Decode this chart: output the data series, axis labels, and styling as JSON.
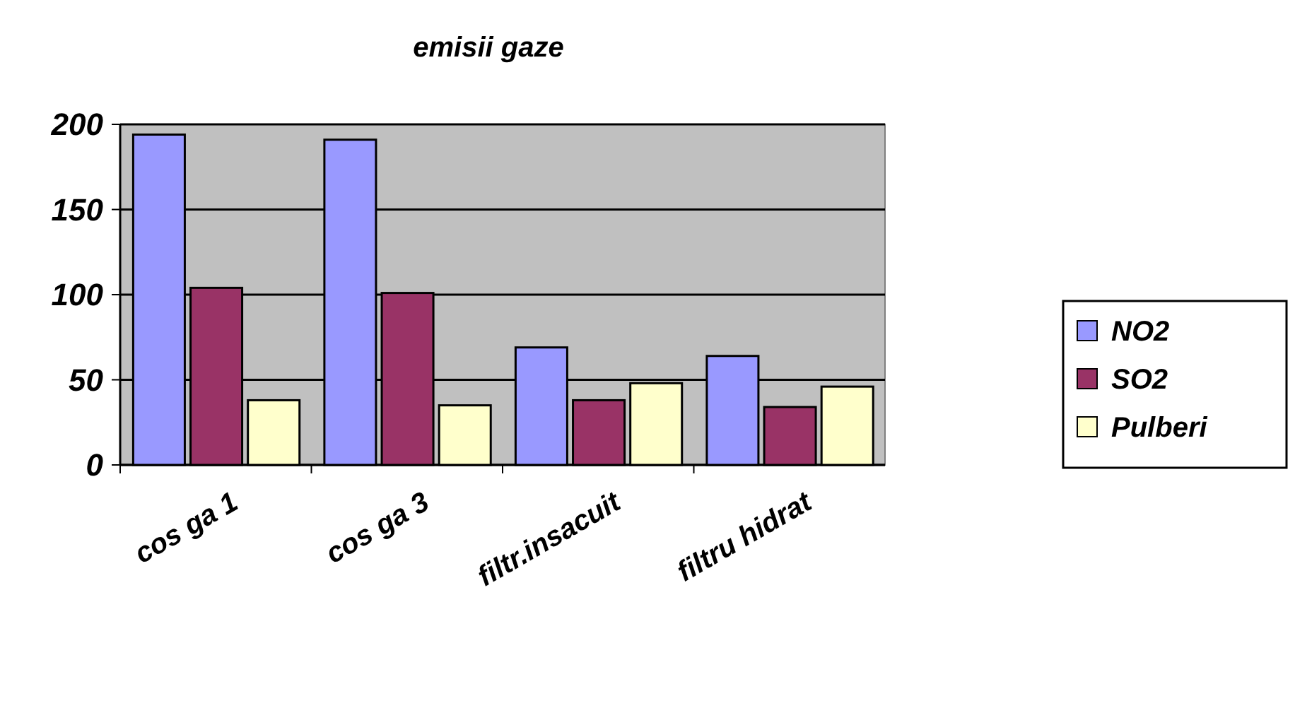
{
  "chart_data": {
    "type": "bar",
    "title": "emisii gaze",
    "categories": [
      "cos ga 1",
      "cos ga 3",
      "filtr.insacuit",
      "filtru hidrat"
    ],
    "series": [
      {
        "name": "NO2",
        "color": "#9999ff",
        "values": [
          194,
          191,
          69,
          64
        ]
      },
      {
        "name": "SO2",
        "color": "#993366",
        "values": [
          104,
          101,
          38,
          34
        ]
      },
      {
        "name": "Pulberi",
        "color": "#ffffcc",
        "values": [
          38,
          35,
          48,
          46
        ]
      }
    ],
    "ylim": [
      0,
      200
    ],
    "yticks": [
      0,
      50,
      100,
      150,
      200
    ],
    "grid": "y",
    "legend": "right"
  }
}
